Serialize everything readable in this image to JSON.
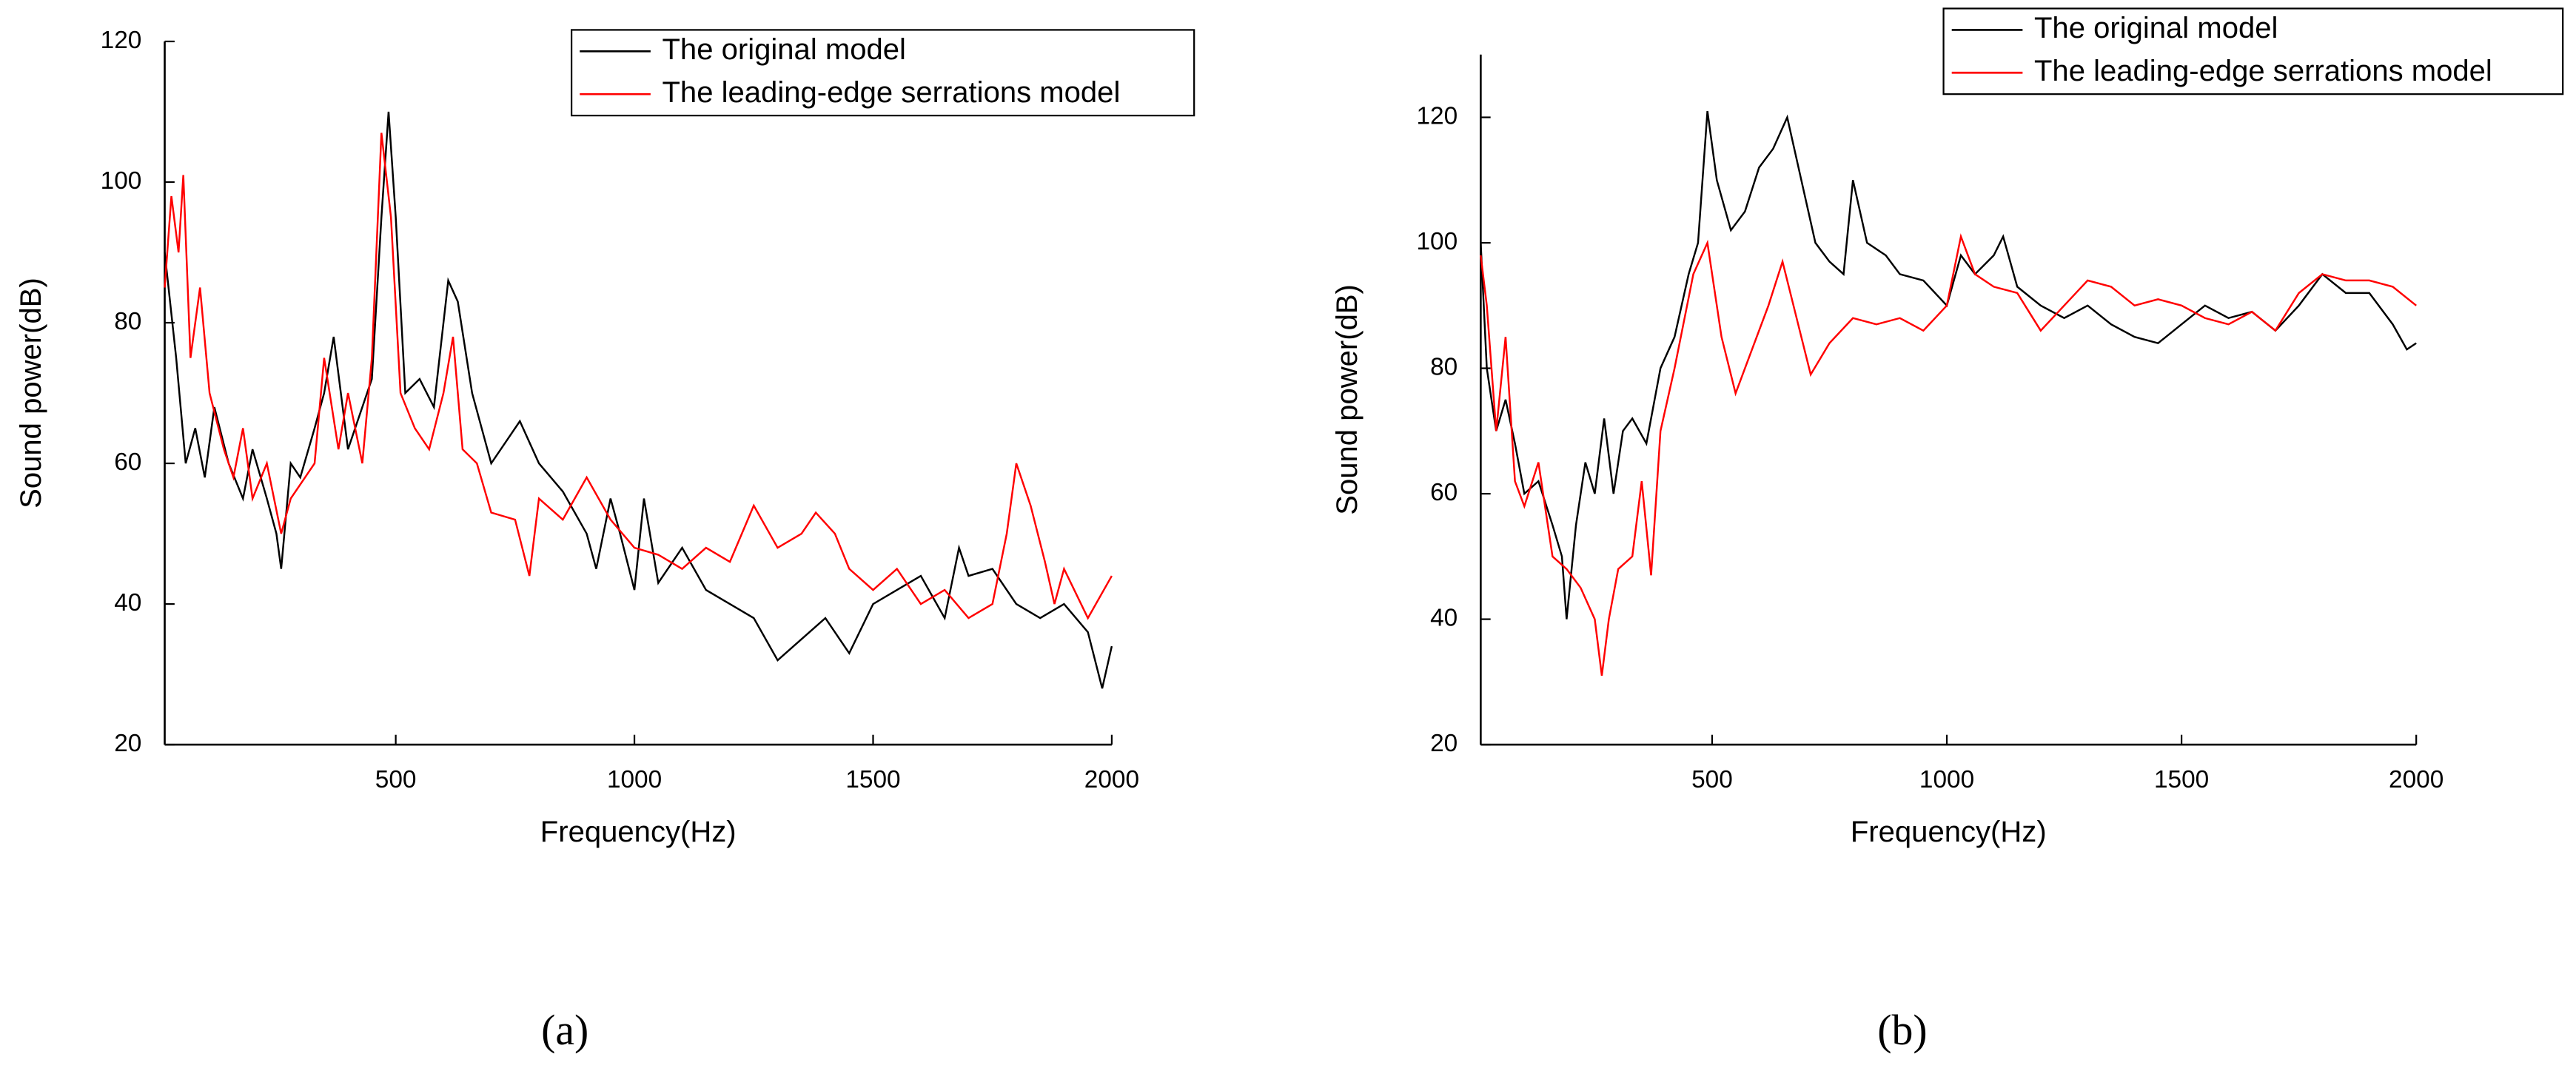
{
  "chart_data": [
    {
      "type": "line",
      "caption": "(a)",
      "x_label": "Frequency(Hz)",
      "y_label": "Sound power(dB)",
      "xlim": [
        16,
        2000
      ],
      "xticks": [
        500,
        1000,
        1500,
        2000
      ],
      "ylim": [
        20,
        120
      ],
      "yticks": [
        20,
        40,
        60,
        80,
        100,
        120
      ],
      "legend": "upper right",
      "series": [
        {
          "name": "The original model",
          "color": "#000000",
          "x": [
            16,
            40,
            60,
            80,
            100,
            120,
            150,
            180,
            200,
            230,
            250,
            260,
            280,
            300,
            330,
            350,
            370,
            400,
            430,
            450,
            470,
            485,
            500,
            520,
            550,
            580,
            610,
            630,
            660,
            700,
            740,
            760,
            800,
            850,
            900,
            920,
            950,
            970,
            1000,
            1020,
            1050,
            1100,
            1150,
            1200,
            1250,
            1300,
            1350,
            1400,
            1450,
            1500,
            1550,
            1600,
            1650,
            1680,
            1700,
            1750,
            1800,
            1850,
            1900,
            1950,
            1980,
            2000
          ],
          "values": [
            90,
            75,
            60,
            65,
            58,
            68,
            60,
            55,
            62,
            55,
            50,
            45,
            60,
            58,
            65,
            70,
            78,
            62,
            68,
            72,
            95,
            110,
            95,
            70,
            72,
            68,
            86,
            83,
            70,
            60,
            64,
            66,
            60,
            56,
            50,
            45,
            55,
            50,
            42,
            55,
            43,
            48,
            42,
            40,
            38,
            32,
            35,
            38,
            33,
            40,
            42,
            44,
            38,
            48,
            44,
            45,
            40,
            38,
            40,
            36,
            28,
            34
          ]
        },
        {
          "name": "The leading-edge serrations model",
          "color": "#ff0000",
          "x": [
            16,
            30,
            45,
            55,
            70,
            90,
            110,
            140,
            160,
            180,
            200,
            230,
            260,
            280,
            300,
            330,
            350,
            380,
            400,
            430,
            450,
            470,
            490,
            510,
            540,
            570,
            600,
            620,
            640,
            670,
            700,
            750,
            780,
            800,
            850,
            900,
            950,
            1000,
            1050,
            1100,
            1150,
            1200,
            1250,
            1300,
            1350,
            1380,
            1420,
            1450,
            1500,
            1550,
            1600,
            1650,
            1700,
            1750,
            1780,
            1800,
            1830,
            1860,
            1880,
            1900,
            1950,
            2000
          ],
          "values": [
            85,
            98,
            90,
            101,
            75,
            85,
            70,
            62,
            58,
            65,
            55,
            60,
            50,
            55,
            57,
            60,
            75,
            62,
            70,
            60,
            75,
            107,
            95,
            70,
            65,
            62,
            70,
            78,
            62,
            60,
            53,
            52,
            44,
            55,
            52,
            58,
            52,
            48,
            47,
            45,
            48,
            46,
            54,
            48,
            50,
            53,
            50,
            45,
            42,
            45,
            40,
            42,
            38,
            40,
            50,
            60,
            54,
            46,
            40,
            45,
            38,
            44
          ]
        }
      ]
    },
    {
      "type": "line",
      "caption": "(b)",
      "x_label": "Frequency(Hz)",
      "y_label": "Sound power(dB)",
      "xlim": [
        7,
        2000
      ],
      "xticks": [
        500,
        1000,
        1500,
        2000
      ],
      "ylim": [
        20,
        130
      ],
      "yticks": [
        20,
        40,
        60,
        80,
        100,
        120
      ],
      "legend": "upper right",
      "series": [
        {
          "name": "The original model",
          "color": "#000000",
          "x": [
            7,
            20,
            40,
            60,
            80,
            100,
            130,
            160,
            180,
            190,
            210,
            230,
            250,
            270,
            290,
            310,
            330,
            360,
            390,
            420,
            450,
            470,
            490,
            510,
            540,
            570,
            600,
            630,
            660,
            690,
            720,
            750,
            780,
            800,
            830,
            870,
            900,
            950,
            1000,
            1030,
            1060,
            1100,
            1120,
            1150,
            1200,
            1250,
            1300,
            1350,
            1400,
            1450,
            1500,
            1550,
            1600,
            1650,
            1700,
            1750,
            1800,
            1850,
            1900,
            1950,
            1980,
            2000
          ],
          "values": [
            100,
            80,
            70,
            75,
            68,
            60,
            62,
            55,
            50,
            40,
            55,
            65,
            60,
            72,
            60,
            70,
            72,
            68,
            80,
            85,
            95,
            100,
            121,
            110,
            102,
            105,
            112,
            115,
            120,
            110,
            100,
            97,
            95,
            110,
            100,
            98,
            95,
            94,
            90,
            98,
            95,
            98,
            101,
            93,
            90,
            88,
            90,
            87,
            85,
            84,
            87,
            90,
            88,
            89,
            86,
            90,
            95,
            92,
            92,
            87,
            83,
            84
          ]
        },
        {
          "name": "The leading-edge serrations model",
          "color": "#ff0000",
          "x": [
            7,
            20,
            40,
            60,
            80,
            100,
            130,
            160,
            190,
            220,
            250,
            265,
            280,
            300,
            330,
            350,
            370,
            390,
            420,
            460,
            490,
            520,
            550,
            580,
            620,
            650,
            680,
            710,
            750,
            800,
            850,
            900,
            950,
            1000,
            1030,
            1060,
            1100,
            1150,
            1200,
            1250,
            1300,
            1350,
            1400,
            1450,
            1500,
            1550,
            1600,
            1650,
            1700,
            1750,
            1800,
            1850,
            1900,
            1950,
            2000
          ],
          "values": [
            98,
            90,
            70,
            85,
            62,
            58,
            65,
            50,
            48,
            45,
            40,
            31,
            40,
            48,
            50,
            62,
            47,
            70,
            80,
            95,
            100,
            85,
            76,
            82,
            90,
            97,
            88,
            79,
            84,
            88,
            87,
            88,
            86,
            90,
            101,
            95,
            93,
            92,
            86,
            90,
            94,
            93,
            90,
            91,
            90,
            88,
            87,
            89,
            86,
            92,
            95,
            94,
            94,
            93,
            90
          ]
        }
      ]
    }
  ]
}
